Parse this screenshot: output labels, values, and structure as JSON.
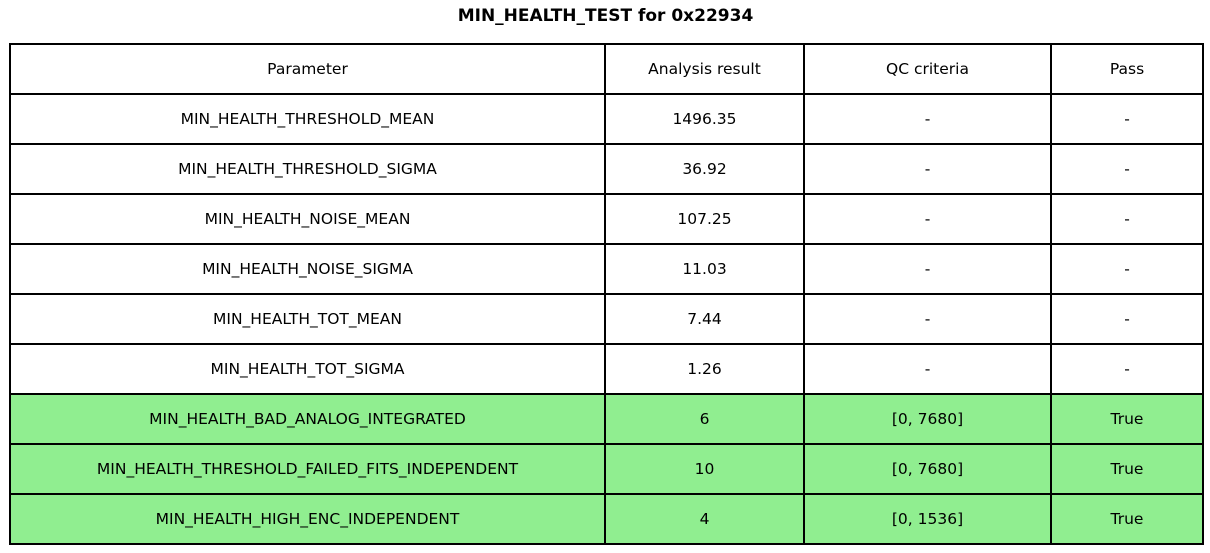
{
  "title": "MIN_HEALTH_TEST for 0x22934",
  "colors": {
    "highlight_green": "#90EE90",
    "border": "#000000",
    "text": "#000000",
    "background": "#ffffff"
  },
  "chart_data": {
    "type": "table",
    "title": "MIN_HEALTH_TEST for 0x22934",
    "columns": [
      "Parameter",
      "Analysis result",
      "QC criteria",
      "Pass"
    ],
    "rows": [
      {
        "cells": [
          "MIN_HEALTH_THRESHOLD_MEAN",
          "1496.35",
          "-",
          "-"
        ],
        "highlight": false
      },
      {
        "cells": [
          "MIN_HEALTH_THRESHOLD_SIGMA",
          "36.92",
          "-",
          "-"
        ],
        "highlight": false
      },
      {
        "cells": [
          "MIN_HEALTH_NOISE_MEAN",
          "107.25",
          "-",
          "-"
        ],
        "highlight": false
      },
      {
        "cells": [
          "MIN_HEALTH_NOISE_SIGMA",
          "11.03",
          "-",
          "-"
        ],
        "highlight": false
      },
      {
        "cells": [
          "MIN_HEALTH_TOT_MEAN",
          "7.44",
          "-",
          "-"
        ],
        "highlight": false
      },
      {
        "cells": [
          "MIN_HEALTH_TOT_SIGMA",
          "1.26",
          "-",
          "-"
        ],
        "highlight": false
      },
      {
        "cells": [
          "MIN_HEALTH_BAD_ANALOG_INTEGRATED",
          "6",
          "[0, 7680]",
          "True"
        ],
        "highlight": true
      },
      {
        "cells": [
          "MIN_HEALTH_THRESHOLD_FAILED_FITS_INDEPENDENT",
          "10",
          "[0, 7680]",
          "True"
        ],
        "highlight": true
      },
      {
        "cells": [
          "MIN_HEALTH_HIGH_ENC_INDEPENDENT",
          "4",
          "[0, 1536]",
          "True"
        ],
        "highlight": true
      }
    ],
    "highlight_color": "#90EE90",
    "layout": {
      "legend": false,
      "grid": true,
      "title_position": "top-center"
    }
  }
}
